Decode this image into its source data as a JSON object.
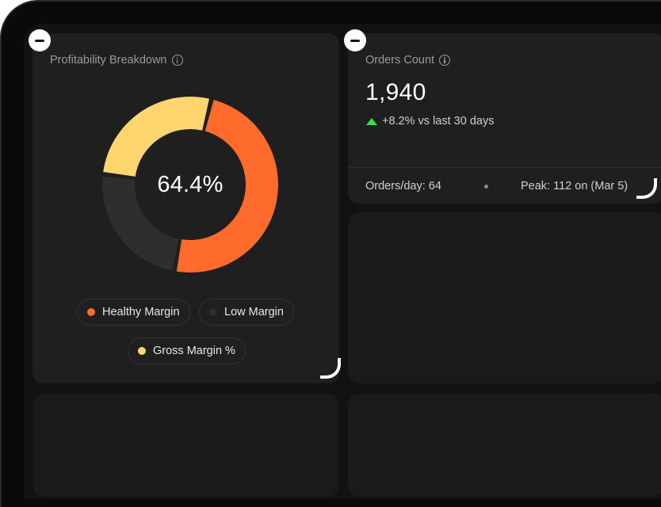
{
  "profitability": {
    "title": "Profitability Breakdown",
    "center_value": "64.4%",
    "segments": [
      {
        "name": "Healthy Margin",
        "fraction": 0.49,
        "color": "#ff6b2c"
      },
      {
        "name": "Low Margin",
        "fraction": 0.24,
        "color": "#2e2e2e"
      },
      {
        "name": "Gross Margin %",
        "fraction": 0.27,
        "color": "#ffd66e"
      }
    ],
    "legend": [
      {
        "label": "Healthy Margin",
        "color": "#ff6b2c"
      },
      {
        "label": "Low Margin",
        "color": "#2e2e2e"
      },
      {
        "label": "Gross Margin %",
        "color": "#ffd66e"
      }
    ]
  },
  "orders": {
    "title": "Orders Count",
    "value": "1,940",
    "delta": "+8.2% vs last 30 days",
    "delta_color": "#3fdc4c",
    "per_day": "Orders/day: 64",
    "peak": "Peak: 112 on (Mar 5)"
  },
  "icons": {
    "info": "info-icon",
    "remove": "minus-circle-icon",
    "resize": "resize-corner-icon",
    "trend": "triangle-up-icon"
  }
}
